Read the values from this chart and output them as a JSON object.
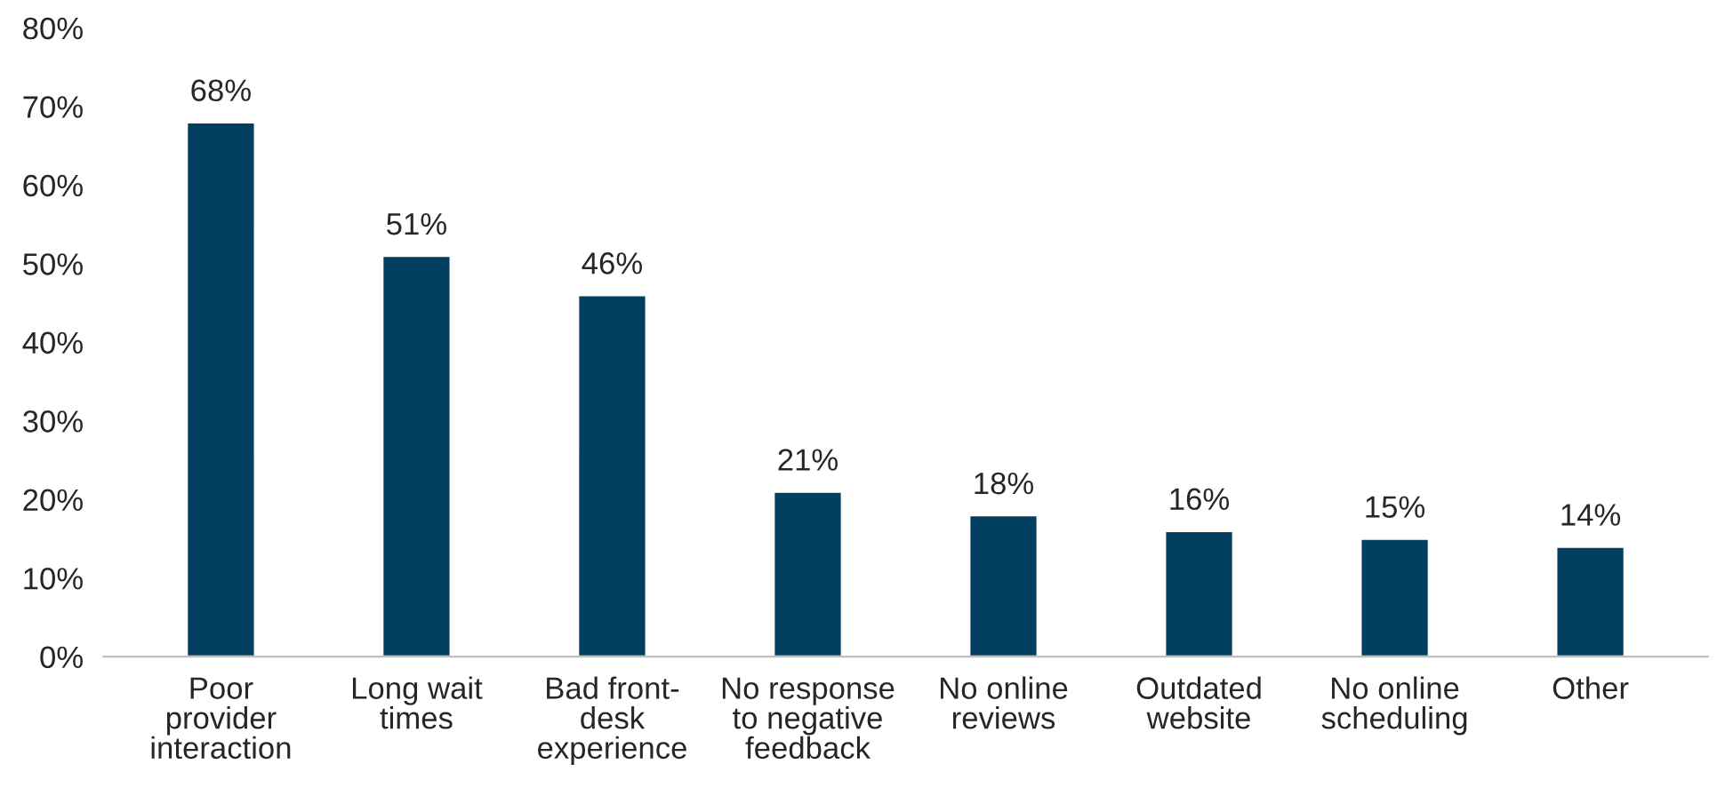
{
  "chart_data": {
    "type": "bar",
    "categories": [
      "Poor\nprovider\ninteraction",
      "Long wait\ntimes",
      "Bad front-\ndesk\nexperience",
      "No response\nto negative\nfeedback",
      "No online\nreviews",
      "Outdated\nwebsite",
      "No online\nscheduling",
      "Other"
    ],
    "values": [
      68,
      51,
      46,
      21,
      18,
      16,
      15,
      14
    ],
    "value_labels": [
      "68%",
      "51%",
      "46%",
      "21%",
      "18%",
      "16%",
      "15%",
      "14%"
    ],
    "color": "#023f61",
    "ylim": [
      0,
      80
    ],
    "yticks": [
      {
        "value": 0,
        "label": "0%"
      },
      {
        "value": 10,
        "label": "10%"
      },
      {
        "value": 20,
        "label": "20%"
      },
      {
        "value": 30,
        "label": "30%"
      },
      {
        "value": 40,
        "label": "40%"
      },
      {
        "value": 50,
        "label": "50%"
      },
      {
        "value": 60,
        "label": "60%"
      },
      {
        "value": 70,
        "label": "70%"
      },
      {
        "value": 80,
        "label": "80%"
      }
    ]
  }
}
